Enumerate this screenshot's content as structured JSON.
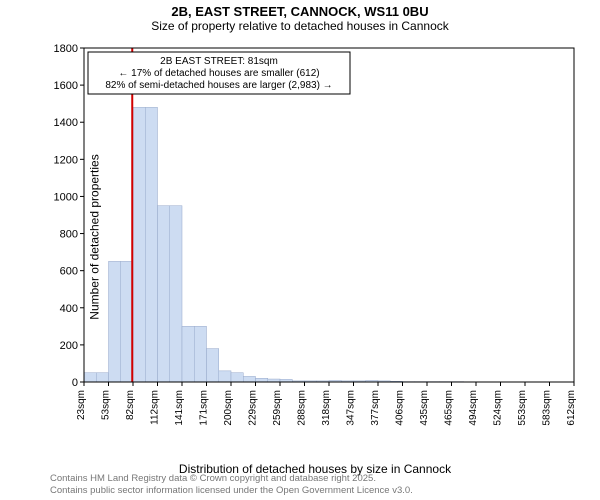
{
  "title": {
    "line1": "2B, EAST STREET, CANNOCK, WS11 0BU",
    "line2": "Size of property relative to detached houses in Cannock"
  },
  "axes": {
    "ylabel": "Number of detached properties",
    "xlabel": "Distribution of detached houses by size in Cannock",
    "y_ticks": [
      0,
      200,
      400,
      600,
      800,
      1000,
      1200,
      1400,
      1600,
      1800
    ],
    "ylim": [
      0,
      1800
    ],
    "x_tick_labels": [
      "23sqm",
      "53sqm",
      "82sqm",
      "112sqm",
      "141sqm",
      "171sqm",
      "200sqm",
      "229sqm",
      "259sqm",
      "288sqm",
      "318sqm",
      "347sqm",
      "377sqm",
      "406sqm",
      "435sqm",
      "465sqm",
      "494sqm",
      "524sqm",
      "553sqm",
      "583sqm",
      "612sqm"
    ],
    "tick_fontsize": 10,
    "label_fontsize": 12,
    "border_color": "#000000",
    "grid": false
  },
  "histogram": {
    "type": "histogram",
    "bin_width_sqm": 14.7,
    "x_start_sqm": 23,
    "x_end_sqm": 612,
    "counts": [
      50,
      50,
      650,
      650,
      1480,
      1480,
      950,
      950,
      300,
      300,
      180,
      60,
      50,
      30,
      20,
      16,
      14,
      6,
      6,
      6,
      8,
      6,
      6,
      8,
      6,
      4,
      2,
      2,
      2,
      2,
      2,
      1,
      1,
      1,
      1,
      0,
      0,
      0,
      0,
      0
    ],
    "fill_color": "#cddcf2",
    "stroke_color": "#95a7c9",
    "stroke_width": 0.5
  },
  "reference_line": {
    "x_sqm": 81,
    "color": "#d10000",
    "width": 2
  },
  "annotation": {
    "lines": [
      "2B EAST STREET: 81sqm",
      "← 17% of detached houses are smaller (612)",
      "82% of semi-detached houses are larger (2,983) →"
    ],
    "box_stroke": "#000000",
    "box_fill": "#ffffff",
    "fontsize": 10
  },
  "footer": {
    "line1": "Contains HM Land Registry data © Crown copyright and database right 2025.",
    "line2": "Contains public sector information licensed under the Open Government Licence v3.0."
  },
  "colors": {
    "background": "#ffffff",
    "text": "#000000",
    "footer_text": "#777777"
  }
}
